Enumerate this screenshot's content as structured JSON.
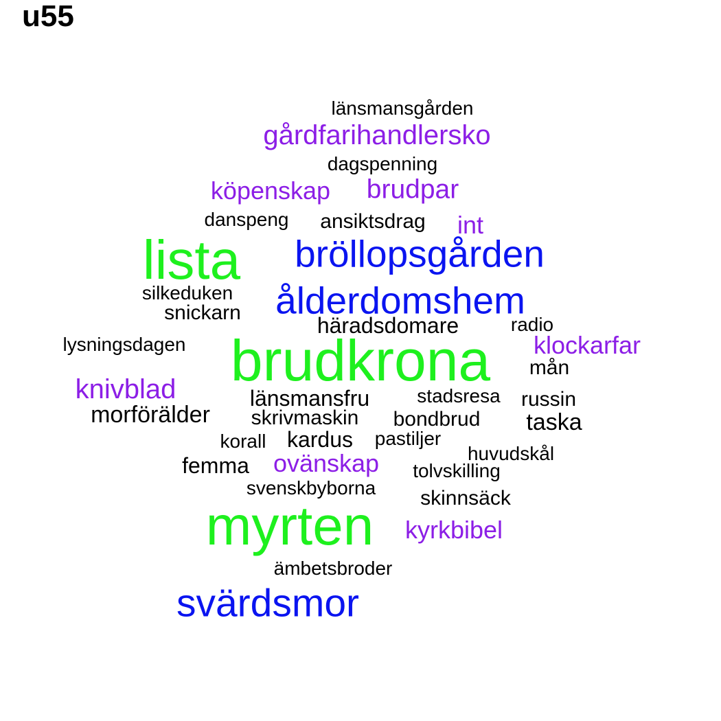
{
  "title": "u55",
  "palette": {
    "green": "#1ef01e",
    "blue": "#0a14f0",
    "purple": "#8c1ee6",
    "black": "#000000"
  },
  "words": [
    {
      "text": "brudkrona",
      "color": "green"
    },
    {
      "text": "myrten",
      "color": "green"
    },
    {
      "text": "lista",
      "color": "green"
    },
    {
      "text": "bröllopsgården",
      "color": "blue"
    },
    {
      "text": "ålderdomshem",
      "color": "blue"
    },
    {
      "text": "svärdsmor",
      "color": "blue"
    },
    {
      "text": "gårdfarihandlersko",
      "color": "purple"
    },
    {
      "text": "köpenskap",
      "color": "purple"
    },
    {
      "text": "brudpar",
      "color": "purple"
    },
    {
      "text": "int",
      "color": "purple"
    },
    {
      "text": "klockarfar",
      "color": "purple"
    },
    {
      "text": "knivblad",
      "color": "purple"
    },
    {
      "text": "ovänskap",
      "color": "purple"
    },
    {
      "text": "kyrkbibel",
      "color": "purple"
    },
    {
      "text": "länsmansgården",
      "color": "black"
    },
    {
      "text": "dagspenning",
      "color": "black"
    },
    {
      "text": "danspeng",
      "color": "black"
    },
    {
      "text": "ansiktsdrag",
      "color": "black"
    },
    {
      "text": "silkeduken",
      "color": "black"
    },
    {
      "text": "snickarn",
      "color": "black"
    },
    {
      "text": "häradsdomare",
      "color": "black"
    },
    {
      "text": "radio",
      "color": "black"
    },
    {
      "text": "lysningsdagen",
      "color": "black"
    },
    {
      "text": "mån",
      "color": "black"
    },
    {
      "text": "länsmansfru",
      "color": "black"
    },
    {
      "text": "stadsresa",
      "color": "black"
    },
    {
      "text": "russin",
      "color": "black"
    },
    {
      "text": "morförälder",
      "color": "black"
    },
    {
      "text": "skrivmaskin",
      "color": "black"
    },
    {
      "text": "bondbrud",
      "color": "black"
    },
    {
      "text": "taska",
      "color": "black"
    },
    {
      "text": "korall",
      "color": "black"
    },
    {
      "text": "kardus",
      "color": "black"
    },
    {
      "text": "pastiljer",
      "color": "black"
    },
    {
      "text": "huvudskål",
      "color": "black"
    },
    {
      "text": "femma",
      "color": "black"
    },
    {
      "text": "tolvskilling",
      "color": "black"
    },
    {
      "text": "svenskbyborna",
      "color": "black"
    },
    {
      "text": "skinnsäck",
      "color": "black"
    },
    {
      "text": "ämbetsbroder",
      "color": "black"
    }
  ]
}
